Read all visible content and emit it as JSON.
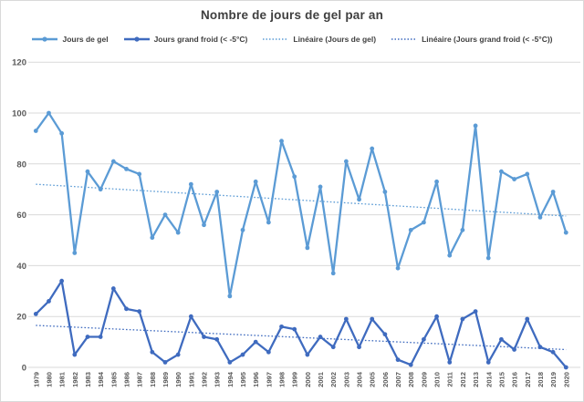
{
  "title": "Nombre de jours de gel par an",
  "legend": [
    {
      "label": "Jours de gel",
      "color": "#5b9bd5",
      "style": "solid-marker"
    },
    {
      "label": "Jours grand froid (< -5°C)",
      "color": "#3f6bbf",
      "style": "solid-marker"
    },
    {
      "label": "Linéaire (Jours de gel)",
      "color": "#5b9bd5",
      "style": "dotted"
    },
    {
      "label": "Linéaire (Jours grand froid (< -5°C))",
      "color": "#3f6bbf",
      "style": "dotted"
    }
  ],
  "chart_data": {
    "type": "line",
    "title": "Nombre de jours de gel par an",
    "xlabel": "",
    "ylabel": "",
    "ylim": [
      0,
      120
    ],
    "yticks": [
      0,
      20,
      40,
      60,
      80,
      100,
      120
    ],
    "grid": "horizontal",
    "legend_position": "top",
    "categories": [
      "1979",
      "1980",
      "1981",
      "1982",
      "1983",
      "1984",
      "1985",
      "1986",
      "1987",
      "1988",
      "1989",
      "1990",
      "1991",
      "1992",
      "1993",
      "1994",
      "1995",
      "1996",
      "1997",
      "1998",
      "1999",
      "2000",
      "2001",
      "2002",
      "2003",
      "2004",
      "2005",
      "2006",
      "2007",
      "2008",
      "2009",
      "2010",
      "2011",
      "2012",
      "2013",
      "2014",
      "2015",
      "2016",
      "2017",
      "2018",
      "2019",
      "2020"
    ],
    "series": [
      {
        "name": "Jours de gel",
        "color": "#5b9bd5",
        "values": [
          93,
          100,
          92,
          45,
          77,
          70,
          81,
          78,
          76,
          51,
          60,
          53,
          72,
          56,
          69,
          28,
          54,
          73,
          57,
          89,
          75,
          47,
          71,
          37,
          81,
          66,
          86,
          69,
          39,
          54,
          57,
          73,
          44,
          54,
          95,
          43,
          77,
          74,
          76,
          59,
          69,
          53
        ]
      },
      {
        "name": "Jours grand froid (< -5°C)",
        "color": "#3f6bbf",
        "values": [
          21,
          26,
          34,
          5,
          12,
          12,
          31,
          23,
          22,
          6,
          2,
          5,
          20,
          12,
          11,
          2,
          5,
          10,
          6,
          16,
          15,
          5,
          12,
          8,
          19,
          8,
          19,
          13,
          3,
          1,
          11,
          20,
          2,
          19,
          22,
          2,
          11,
          7,
          19,
          8,
          6,
          0
        ]
      }
    ],
    "trendlines": [
      {
        "name": "Linéaire (Jours de gel)",
        "for": "Jours de gel",
        "color": "#5b9bd5",
        "start_value": 72,
        "end_value": 59.5
      },
      {
        "name": "Linéaire (Jours grand froid (< -5°C))",
        "for": "Jours grand froid (< -5°C)",
        "color": "#3f6bbf",
        "start_value": 16.5,
        "end_value": 7
      }
    ]
  },
  "colors": {
    "grid": "#d9d9d9",
    "axis_text": "#595959",
    "title_text": "#3f3f3f",
    "border": "#d9d9d9",
    "background": "#ffffff"
  }
}
